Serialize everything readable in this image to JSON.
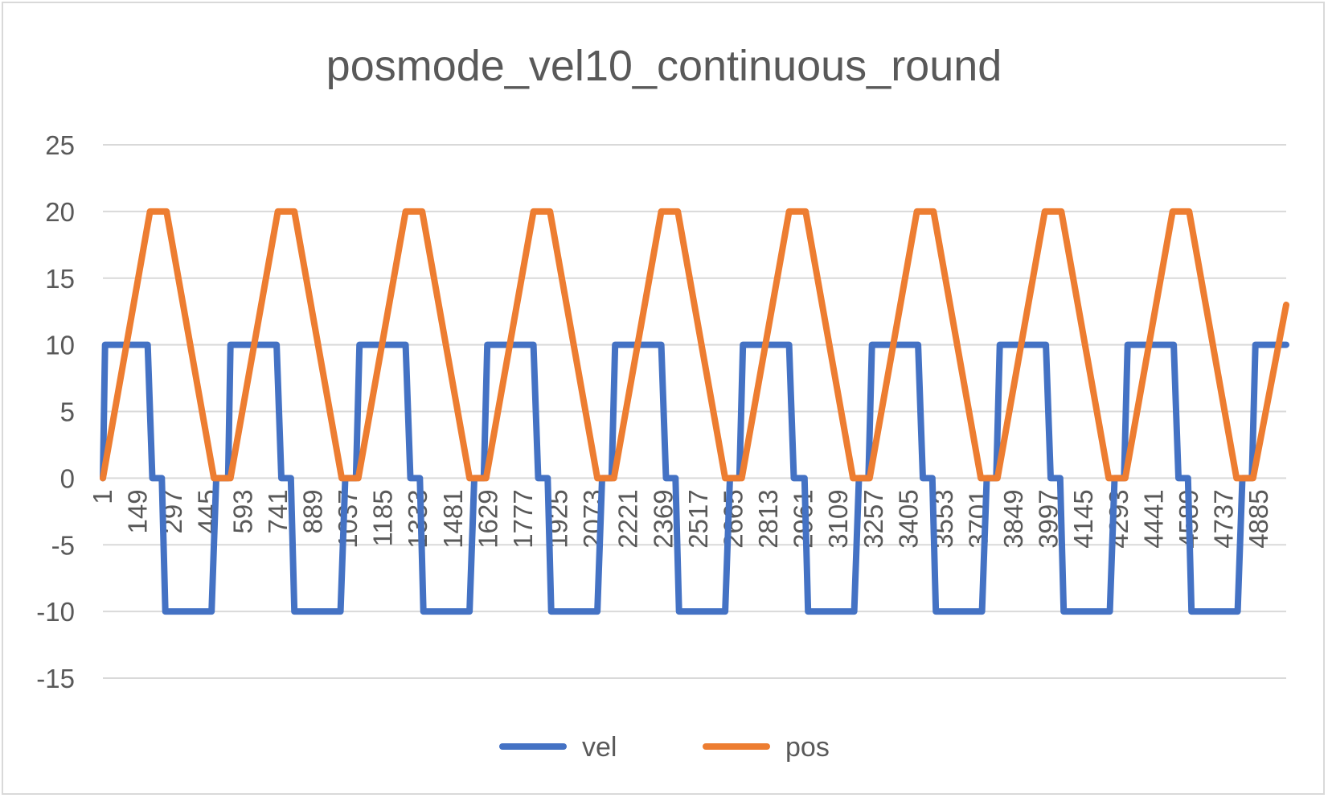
{
  "chart_data": {
    "type": "line",
    "title": "posmode_vel10_continuous_round",
    "xlabel": "",
    "ylabel": "",
    "ylim": [
      -15,
      25
    ],
    "yticks": [
      -15,
      -10,
      -5,
      0,
      5,
      10,
      15,
      20,
      25
    ],
    "xlim": [
      1,
      5000
    ],
    "xticks": [
      1,
      149,
      297,
      445,
      593,
      741,
      889,
      1037,
      1185,
      1333,
      1481,
      1629,
      1777,
      1925,
      2073,
      2221,
      2369,
      2517,
      2665,
      2813,
      2961,
      3109,
      3257,
      3405,
      3553,
      3701,
      3849,
      3997,
      4145,
      4293,
      4441,
      4589,
      4737,
      4885
    ],
    "grid": true,
    "legend_position": "bottom",
    "series": [
      {
        "name": "vel",
        "color": "#4472c4",
        "x": [
          1,
          10,
          190,
          210,
          250,
          265,
          275,
          460,
          480,
          530,
          540,
          550,
          735,
          755,
          795,
          810,
          820,
          1005,
          1025,
          1070,
          1085,
          1095,
          1280,
          1300,
          1340,
          1355,
          1365,
          1550,
          1570,
          1610,
          1625,
          1635,
          1820,
          1840,
          1880,
          1895,
          1905,
          2090,
          2110,
          2150,
          2165,
          2175,
          2360,
          2380,
          2420,
          2435,
          2445,
          2630,
          2650,
          2690,
          2705,
          2715,
          2900,
          2920,
          2965,
          2980,
          2990,
          3175,
          3195,
          3235,
          3250,
          3260,
          3445,
          3465,
          3505,
          3520,
          3530,
          3715,
          3735,
          3775,
          3790,
          3800,
          3985,
          4005,
          4045,
          4060,
          4070,
          4255,
          4275,
          4315,
          4330,
          4340,
          4525,
          4545,
          4585,
          4600,
          4610,
          4795,
          4815,
          4855,
          4870,
          4880,
          5000
        ],
        "values": [
          0,
          10,
          10,
          0,
          0,
          -10,
          -10,
          -10,
          0,
          0,
          10,
          10,
          10,
          0,
          0,
          -10,
          -10,
          -10,
          0,
          0,
          10,
          10,
          10,
          0,
          0,
          -10,
          -10,
          -10,
          0,
          0,
          10,
          10,
          10,
          0,
          0,
          -10,
          -10,
          -10,
          0,
          0,
          10,
          10,
          10,
          0,
          0,
          -10,
          -10,
          -10,
          0,
          0,
          10,
          10,
          10,
          0,
          0,
          -10,
          -10,
          -10,
          0,
          0,
          10,
          10,
          10,
          0,
          0,
          -10,
          -10,
          -10,
          0,
          0,
          10,
          10,
          10,
          0,
          0,
          -10,
          -10,
          -10,
          0,
          0,
          10,
          10,
          10,
          0,
          0,
          -10,
          -10,
          -10,
          0,
          0,
          10,
          10,
          10
        ]
      },
      {
        "name": "pos",
        "color": "#ed7d31",
        "x": [
          1,
          200,
          270,
          470,
          540,
          740,
          810,
          1010,
          1080,
          1280,
          1350,
          1550,
          1620,
          1820,
          1890,
          2090,
          2160,
          2360,
          2430,
          2630,
          2700,
          2900,
          2970,
          3170,
          3240,
          3440,
          3510,
          3710,
          3780,
          3980,
          4050,
          4250,
          4320,
          4520,
          4590,
          4790,
          4860,
          5000
        ],
        "values": [
          0,
          20,
          20,
          0,
          0,
          20,
          20,
          0,
          0,
          20,
          20,
          0,
          0,
          20,
          20,
          0,
          0,
          20,
          20,
          0,
          0,
          20,
          20,
          0,
          0,
          20,
          20,
          0,
          0,
          20,
          20,
          0,
          0,
          20,
          20,
          0,
          0,
          13
        ]
      }
    ]
  }
}
